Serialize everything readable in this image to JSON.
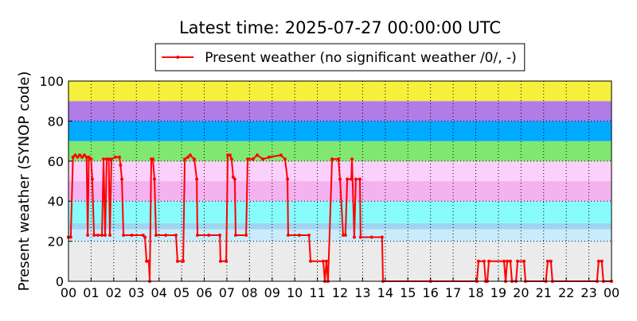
{
  "chart_data": {
    "type": "line",
    "title": "Latest time: 2025-07-27 00:00:00 UTC",
    "ylabel": "Present weather (SYNOP code)",
    "xlim": [
      0,
      24
    ],
    "ylim": [
      0,
      100
    ],
    "xticks": [
      {
        "value": 0,
        "label": "00"
      },
      {
        "value": 1,
        "label": "01"
      },
      {
        "value": 2,
        "label": "02"
      },
      {
        "value": 3,
        "label": "03"
      },
      {
        "value": 4,
        "label": "04"
      },
      {
        "value": 5,
        "label": "05"
      },
      {
        "value": 6,
        "label": "06"
      },
      {
        "value": 7,
        "label": "07"
      },
      {
        "value": 8,
        "label": "08"
      },
      {
        "value": 9,
        "label": "09"
      },
      {
        "value": 10,
        "label": "10"
      },
      {
        "value": 11,
        "label": "11"
      },
      {
        "value": 12,
        "label": "12"
      },
      {
        "value": 13,
        "label": "13"
      },
      {
        "value": 14,
        "label": "14"
      },
      {
        "value": 15,
        "label": "15"
      },
      {
        "value": 16,
        "label": "16"
      },
      {
        "value": 17,
        "label": "17"
      },
      {
        "value": 18,
        "label": "18"
      },
      {
        "value": 19,
        "label": "19"
      },
      {
        "value": 20,
        "label": "20"
      },
      {
        "value": 21,
        "label": "21"
      },
      {
        "value": 22,
        "label": "22"
      },
      {
        "value": 23,
        "label": "23"
      },
      {
        "value": 24,
        "label": "00"
      }
    ],
    "yticks": [
      0,
      20,
      40,
      60,
      80,
      100
    ],
    "grid": true,
    "legend": "top",
    "bands": [
      {
        "from": 0,
        "to": 20,
        "color": "#ebebeb"
      },
      {
        "from": 20,
        "to": 26,
        "color": "#c8ecfc"
      },
      {
        "from": 26,
        "to": 29,
        "color": "#a0d4f0"
      },
      {
        "from": 29,
        "to": 40,
        "color": "#88fcfc"
      },
      {
        "from": 40,
        "to": 50,
        "color": "#f5b2f0"
      },
      {
        "from": 50,
        "to": 60,
        "color": "#fcd0fc"
      },
      {
        "from": 60,
        "to": 70,
        "color": "#80e870"
      },
      {
        "from": 70,
        "to": 80,
        "color": "#00aaff"
      },
      {
        "from": 80,
        "to": 90,
        "color": "#b07ce8"
      },
      {
        "from": 90,
        "to": 100,
        "color": "#f5f03c"
      }
    ],
    "x": [
      0,
      0.1,
      0.2,
      0.3,
      0.4,
      0.5,
      0.6,
      0.7,
      0.8,
      0.85,
      0.9,
      1.0,
      1.05,
      1.13,
      1.3,
      1.48,
      1.55,
      1.62,
      1.69,
      1.78,
      1.83,
      1.9,
      2.07,
      2.25,
      2.3,
      2.36,
      2.43,
      2.8,
      3.3,
      3.38,
      3.45,
      3.55,
      3.59,
      3.66,
      3.73,
      3.8,
      3.87,
      4.3,
      4.75,
      4.82,
      5.07,
      5.14,
      5.28,
      5.38,
      5.56,
      5.67,
      5.7,
      6.2,
      6.69,
      6.72,
      6.97,
      7.04,
      7.14,
      7.21,
      7.28,
      7.35,
      7.39,
      7.85,
      7.92,
      8.15,
      8.34,
      8.59,
      8.87,
      9.39,
      9.57,
      9.68,
      9.71,
      10.2,
      10.63,
      10.7,
      11.26,
      11.33,
      11.4,
      11.47,
      11.65,
      11.93,
      12.0,
      12.14,
      12.24,
      12.32,
      12.5,
      12.53,
      12.63,
      12.7,
      12.88,
      12.91,
      13.4,
      13.86,
      13.9,
      16,
      18.05,
      18.12,
      18.37,
      18.44,
      18.51,
      18.58,
      19.25,
      19.32,
      19.39,
      19.53,
      19.6,
      19.78,
      19.85,
      20.13,
      20.2,
      21.1,
      21.18,
      21.32,
      21.39,
      23.36,
      23.43,
      23.57,
      23.64,
      24
    ],
    "series": [
      {
        "name": "Present weather (no significant weather /0/, -)",
        "color": "#ff0000",
        "values": [
          22,
          22,
          62,
          63,
          62,
          63,
          62,
          63,
          62,
          23,
          62,
          61,
          51,
          23,
          23,
          23,
          61,
          23,
          61,
          61,
          23,
          61,
          62,
          62,
          58,
          51,
          23,
          23,
          23,
          22,
          10,
          10,
          0,
          61,
          61,
          51,
          23,
          23,
          23,
          10,
          10,
          61,
          62,
          63,
          61,
          51,
          23,
          23,
          23,
          10,
          10,
          63,
          63,
          61,
          52,
          51,
          23,
          23,
          61,
          61,
          63,
          61,
          62,
          63,
          61,
          51,
          23,
          23,
          23,
          10,
          10,
          0,
          10,
          0,
          61,
          61,
          51,
          23,
          23,
          51,
          51,
          61,
          22,
          51,
          51,
          22,
          22,
          22,
          0,
          0,
          0,
          10,
          10,
          0,
          0,
          10,
          10,
          0,
          10,
          10,
          0,
          0,
          10,
          10,
          0,
          0,
          10,
          10,
          0,
          0,
          10,
          10,
          0,
          0
        ]
      }
    ]
  }
}
